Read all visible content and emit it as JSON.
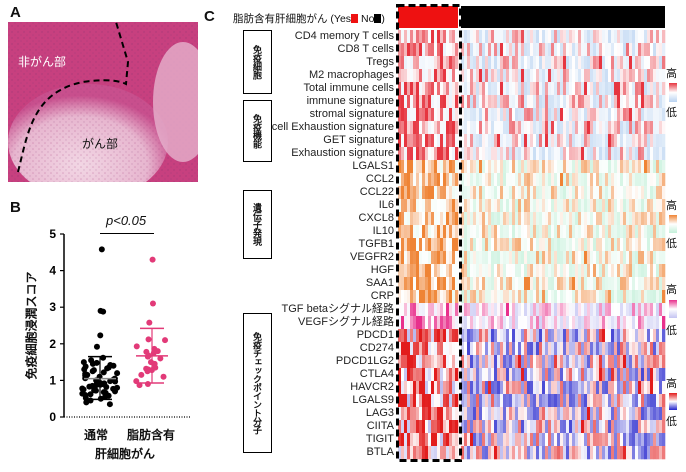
{
  "panel_a": {
    "letter": "A",
    "label_noncancer": "非がん部",
    "label_cancer": "がん部"
  },
  "panel_b": {
    "letter": "B",
    "pvalue": "p<0.05",
    "ylabel": "免疫細胞浸潤スコア",
    "xlabel": "肝細胞がん",
    "yticks": [
      "0",
      "1",
      "2",
      "3",
      "4",
      "5"
    ]
  },
  "panel_c": {
    "letter": "C",
    "header_label": "脂肪含有肝細胞がん",
    "legend_open": "(Yes",
    "legend_no": "No",
    "legend_close": ")",
    "yes_color": "#ee1111",
    "no_color": "#000000",
    "groups": [
      {
        "label": "免疫細胞",
        "high": "#e63540",
        "low": "#b9d3f1"
      },
      {
        "label": "免疫機能",
        "high": "#e63540",
        "low": "#b9d3f1"
      },
      {
        "label": "遺伝子発現",
        "high": "#ef8435",
        "low": "#c4f0da"
      },
      {
        "label": "免疫チェックポイント分子",
        "high": "#e21c1c",
        "low": "#2222cc"
      }
    ],
    "pathway_scale": {
      "high": "#e8308c",
      "low": "#c4c4f2"
    },
    "legend_high": "高",
    "legend_low": "低",
    "rows": [
      "CD4 memory T cells",
      "CD8 T cells",
      "Tregs",
      "M2 macrophages",
      "Total immune cells",
      "immune signature",
      "stromal signature",
      "T cell Exhaustion signature",
      "GET signature",
      "Exhaustion signature",
      "LGALS1",
      "CCL2",
      "CCL22",
      "IL6",
      "CXCL8",
      "IL10",
      "TGFB1",
      "VEGFR2",
      "HGF",
      "SAA1",
      "CRP",
      "TGF betaシグナル経路",
      "VEGFシグナル経路",
      "PDCD1",
      "CD274",
      "PDCD1LG2",
      "CTLA4",
      "HAVCR2",
      "LGALS9",
      "LAG3",
      "CIITA",
      "TIGIT",
      "BTLA"
    ]
  },
  "chart_data": {
    "type": "scatter",
    "title": "",
    "xlabel": "肝細胞がん",
    "ylabel": "免疫細胞浸潤スコア",
    "categories": [
      "通常",
      "脂肪含有"
    ],
    "ylim": [
      0,
      5
    ],
    "annotation": "p<0.05",
    "series": [
      {
        "name": "通常",
        "color": "#000000",
        "mean": 1.05,
        "sd_low": 0.48,
        "sd_high": 1.65,
        "values": [
          4.58,
          2.9,
          2.88,
          2.23,
          1.92,
          1.62,
          1.55,
          1.5,
          1.48,
          1.45,
          1.42,
          1.4,
          1.38,
          1.35,
          1.33,
          1.3,
          1.28,
          1.25,
          1.22,
          1.2,
          1.18,
          1.15,
          1.13,
          1.1,
          1.08,
          1.06,
          1.05,
          1.03,
          1.0,
          0.98,
          0.97,
          0.95,
          0.93,
          0.92,
          0.9,
          0.88,
          0.87,
          0.85,
          0.83,
          0.82,
          0.8,
          0.78,
          0.77,
          0.75,
          0.73,
          0.72,
          0.7,
          0.68,
          0.66,
          0.64,
          0.62,
          0.6,
          0.58,
          0.55,
          0.52,
          0.5,
          0.45,
          0.4,
          0.35
        ]
      },
      {
        "name": "脂肪含有",
        "color": "#e23a78",
        "mean": 1.67,
        "sd_low": 0.93,
        "sd_high": 2.42,
        "values": [
          4.3,
          3.1,
          2.58,
          2.12,
          2.1,
          1.93,
          1.86,
          1.8,
          1.78,
          1.75,
          1.68,
          1.65,
          1.6,
          1.5,
          1.45,
          1.35,
          1.32,
          1.3,
          1.28,
          1.25,
          1.15,
          1.1,
          0.98,
          0.9,
          0.87
        ]
      }
    ]
  }
}
